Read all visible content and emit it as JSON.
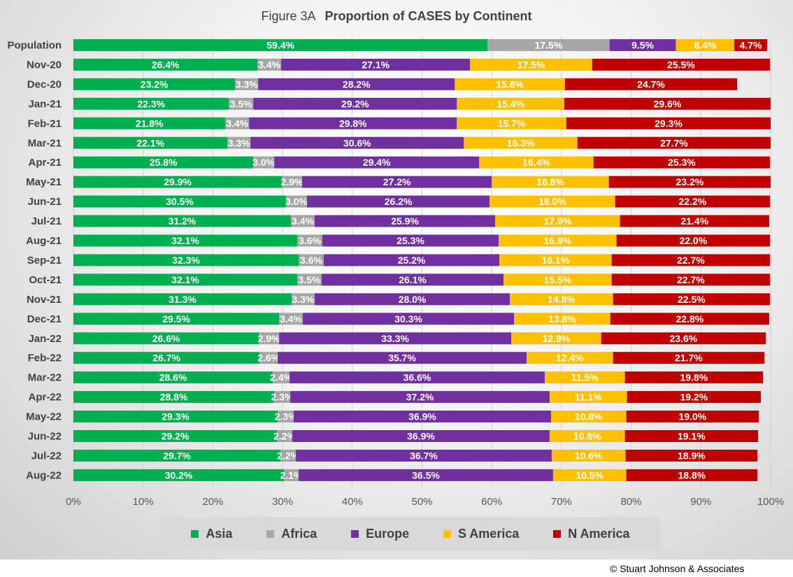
{
  "title": {
    "figure": "Figure  3A",
    "main": "Proportion of CASES by Continent"
  },
  "copyright": "© Stuart Johnson & Associates",
  "colors": {
    "Asia": "#00b050",
    "Africa": "#a6a6a6",
    "Europe": "#7030a0",
    "S America": "#ffc000",
    "N America": "#c00000"
  },
  "legend": [
    {
      "name": "Asia"
    },
    {
      "name": "Africa"
    },
    {
      "name": "Europe"
    },
    {
      "name": "S America"
    },
    {
      "name": "N America"
    }
  ],
  "chart_data": {
    "type": "bar",
    "orientation": "horizontal",
    "stacked": "100%",
    "title": "Proportion of CASES by Continent",
    "xlim": [
      0,
      100
    ],
    "x_ticks": [
      "0%",
      "10%",
      "20%",
      "30%",
      "40%",
      "50%",
      "60%",
      "70%",
      "80%",
      "90%",
      "100%"
    ],
    "grid": true,
    "legend_position": "bottom",
    "categories": [
      "Population",
      "Nov-20",
      "Dec-20",
      "Jan-21",
      "Feb-21",
      "Mar-21",
      "Apr-21",
      "May-21",
      "Jun-21",
      "Jul-21",
      "Aug-21",
      "Sep-21",
      "Oct-21",
      "Nov-21",
      "Dec-21",
      "Jan-22",
      "Feb-22",
      "Mar-22",
      "Apr-22",
      "May-22",
      "Jun-22",
      "Jul-22",
      "Aug-22"
    ],
    "series": [
      {
        "name": "Asia",
        "values": [
          59.4,
          26.4,
          23.2,
          22.3,
          21.8,
          22.1,
          25.8,
          29.9,
          30.5,
          31.2,
          32.1,
          32.3,
          32.1,
          31.3,
          29.5,
          26.6,
          26.7,
          28.6,
          28.8,
          29.3,
          29.2,
          29.7,
          30.2
        ]
      },
      {
        "name": "Africa",
        "values": [
          17.5,
          3.4,
          3.3,
          3.5,
          3.4,
          3.3,
          3.0,
          2.9,
          3.0,
          3.4,
          3.6,
          3.6,
          3.5,
          3.3,
          3.4,
          2.9,
          2.6,
          2.4,
          2.3,
          2.3,
          2.2,
          2.2,
          2.1
        ]
      },
      {
        "name": "Europe",
        "values": [
          9.5,
          27.1,
          28.2,
          29.2,
          29.8,
          30.6,
          29.4,
          27.2,
          26.2,
          25.9,
          25.3,
          25.2,
          26.1,
          28.0,
          30.3,
          33.3,
          35.7,
          36.6,
          37.2,
          36.9,
          36.9,
          36.7,
          36.5
        ]
      },
      {
        "name": "S America",
        "values": [
          8.4,
          17.5,
          15.8,
          15.4,
          15.7,
          16.3,
          16.4,
          16.8,
          18.0,
          17.9,
          16.9,
          16.1,
          15.5,
          14.8,
          13.8,
          12.9,
          12.4,
          11.5,
          11.1,
          10.8,
          10.8,
          10.6,
          10.5
        ]
      },
      {
        "name": "N America",
        "values": [
          4.7,
          25.5,
          24.7,
          29.6,
          29.3,
          27.7,
          25.3,
          23.2,
          22.2,
          21.4,
          22.0,
          22.7,
          22.7,
          22.5,
          22.8,
          23.6,
          21.7,
          19.8,
          19.2,
          19.0,
          19.1,
          18.9,
          18.8
        ]
      }
    ]
  }
}
